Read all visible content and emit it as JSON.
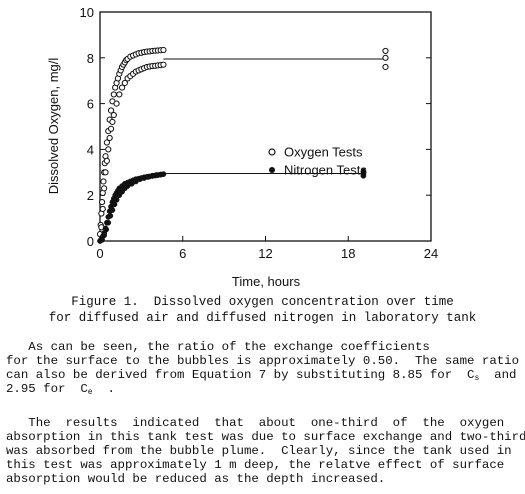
{
  "figure": {
    "caption_line1": "Figure 1.  Dissolved oxygen concentration over time",
    "caption_line2": "for diffused air and diffused nitrogen in laboratory tank"
  },
  "chart_data": {
    "type": "scatter",
    "xlabel": "Time, hours",
    "ylabel": "Dissolved Oxygen, mg/l",
    "xlim": [
      0,
      24
    ],
    "ylim": [
      0,
      10
    ],
    "xticks": [
      0,
      6,
      12,
      18,
      24
    ],
    "yticks": [
      0,
      2,
      4,
      6,
      8,
      10
    ],
    "grid": false,
    "legend_position": "right-middle",
    "series": [
      {
        "name": "Oxygen Tests",
        "marker": "open-circle",
        "x": [
          0.0,
          0.05,
          0.1,
          0.15,
          0.2,
          0.25,
          0.3,
          0.35,
          0.4,
          0.5,
          0.6,
          0.7,
          0.8,
          0.9,
          1.0,
          1.1,
          1.2,
          1.3,
          1.4,
          1.5,
          1.6,
          1.7,
          1.8,
          1.9,
          2.0,
          2.2,
          2.4,
          2.6,
          2.8,
          3.0,
          3.2,
          3.4,
          3.6,
          3.8,
          4.0,
          4.2,
          4.4,
          4.6,
          0.1,
          0.2,
          0.3,
          0.4,
          0.5,
          0.6,
          0.7,
          0.8,
          0.9,
          1.0,
          1.2,
          1.4,
          1.6,
          1.8,
          2.0,
          2.2,
          2.4,
          2.6,
          2.8,
          3.0,
          3.2,
          3.4,
          3.6,
          3.8,
          4.0,
          4.2,
          4.4,
          4.6,
          20.7,
          20.7,
          20.7
        ],
        "y": [
          0.3,
          0.7,
          1.2,
          1.7,
          2.1,
          2.6,
          3.0,
          3.4,
          3.7,
          4.3,
          4.8,
          5.3,
          5.7,
          6.1,
          6.4,
          6.7,
          6.9,
          7.1,
          7.3,
          7.45,
          7.6,
          7.7,
          7.8,
          7.9,
          7.95,
          8.05,
          8.1,
          8.15,
          8.2,
          8.22,
          8.25,
          8.27,
          8.28,
          8.3,
          8.31,
          8.32,
          8.33,
          8.34,
          0.6,
          1.4,
          2.3,
          3.0,
          3.5,
          4.0,
          4.5,
          4.9,
          5.2,
          5.5,
          6.0,
          6.4,
          6.7,
          6.9,
          7.1,
          7.2,
          7.3,
          7.4,
          7.45,
          7.5,
          7.55,
          7.6,
          7.62,
          7.64,
          7.65,
          7.67,
          7.68,
          7.7,
          8.3,
          8.0,
          7.6
        ],
        "plateau_line": {
          "x_from": 4.6,
          "x_to": 20.7,
          "y": 7.95
        }
      },
      {
        "name": "Nitrogen Tests",
        "marker": "filled-circle",
        "x": [
          0.0,
          0.1,
          0.2,
          0.3,
          0.4,
          0.5,
          0.6,
          0.7,
          0.8,
          0.9,
          1.0,
          1.1,
          1.2,
          1.3,
          1.4,
          1.6,
          1.8,
          2.0,
          2.2,
          2.4,
          2.6,
          2.8,
          3.0,
          3.2,
          3.4,
          3.6,
          3.8,
          4.0,
          4.2,
          4.4,
          4.6,
          0.15,
          0.3,
          0.45,
          0.6,
          0.75,
          0.9,
          1.05,
          1.2,
          1.4,
          1.6,
          1.8,
          2.0,
          2.3,
          2.6,
          2.9,
          3.2,
          3.5,
          3.8,
          4.1,
          4.4,
          19.1,
          19.1,
          19.1
        ],
        "y": [
          0.0,
          0.08,
          0.2,
          0.35,
          0.55,
          0.8,
          1.05,
          1.3,
          1.5,
          1.7,
          1.85,
          2.0,
          2.1,
          2.2,
          2.3,
          2.4,
          2.5,
          2.55,
          2.6,
          2.65,
          2.7,
          2.72,
          2.75,
          2.78,
          2.8,
          2.82,
          2.84,
          2.86,
          2.88,
          2.9,
          2.92,
          0.05,
          0.25,
          0.5,
          0.8,
          1.1,
          1.35,
          1.6,
          1.8,
          2.0,
          2.15,
          2.3,
          2.4,
          2.5,
          2.6,
          2.7,
          2.75,
          2.8,
          2.85,
          2.88,
          2.9,
          3.05,
          2.95,
          2.85
        ],
        "plateau_line": {
          "x_from": 4.6,
          "x_to": 19.1,
          "y": 2.95
        }
      }
    ]
  },
  "paragraphs": {
    "p1_line1": "   As can be seen, the ratio of the exchange coefficients",
    "p1_line2": "for the surface to the bubbles is approximately 0.50.  The same ratio",
    "p1_line3": "can also be derived from Equation 7 by substituting 8.85 for  C",
    "p1_line3_sub": "s",
    "p1_line3_end": "  and",
    "p1_line4": "2.95 for  C",
    "p1_line4_sub": "e",
    "p1_line4_end": "  .",
    "p2_line1": "   The  results  indicated  that  about  one-third  of  the  oxygen",
    "p2_line2": "absorption in this tank test was due to surface exchange and two-thirds",
    "p2_line3": "was absorbed from the bubble plume.  Clearly, since the tank used in",
    "p2_line4": "this test was approximately 1 m deep, the relatve effect of surface",
    "p2_line5": "absorption would be reduced as the depth increased."
  }
}
